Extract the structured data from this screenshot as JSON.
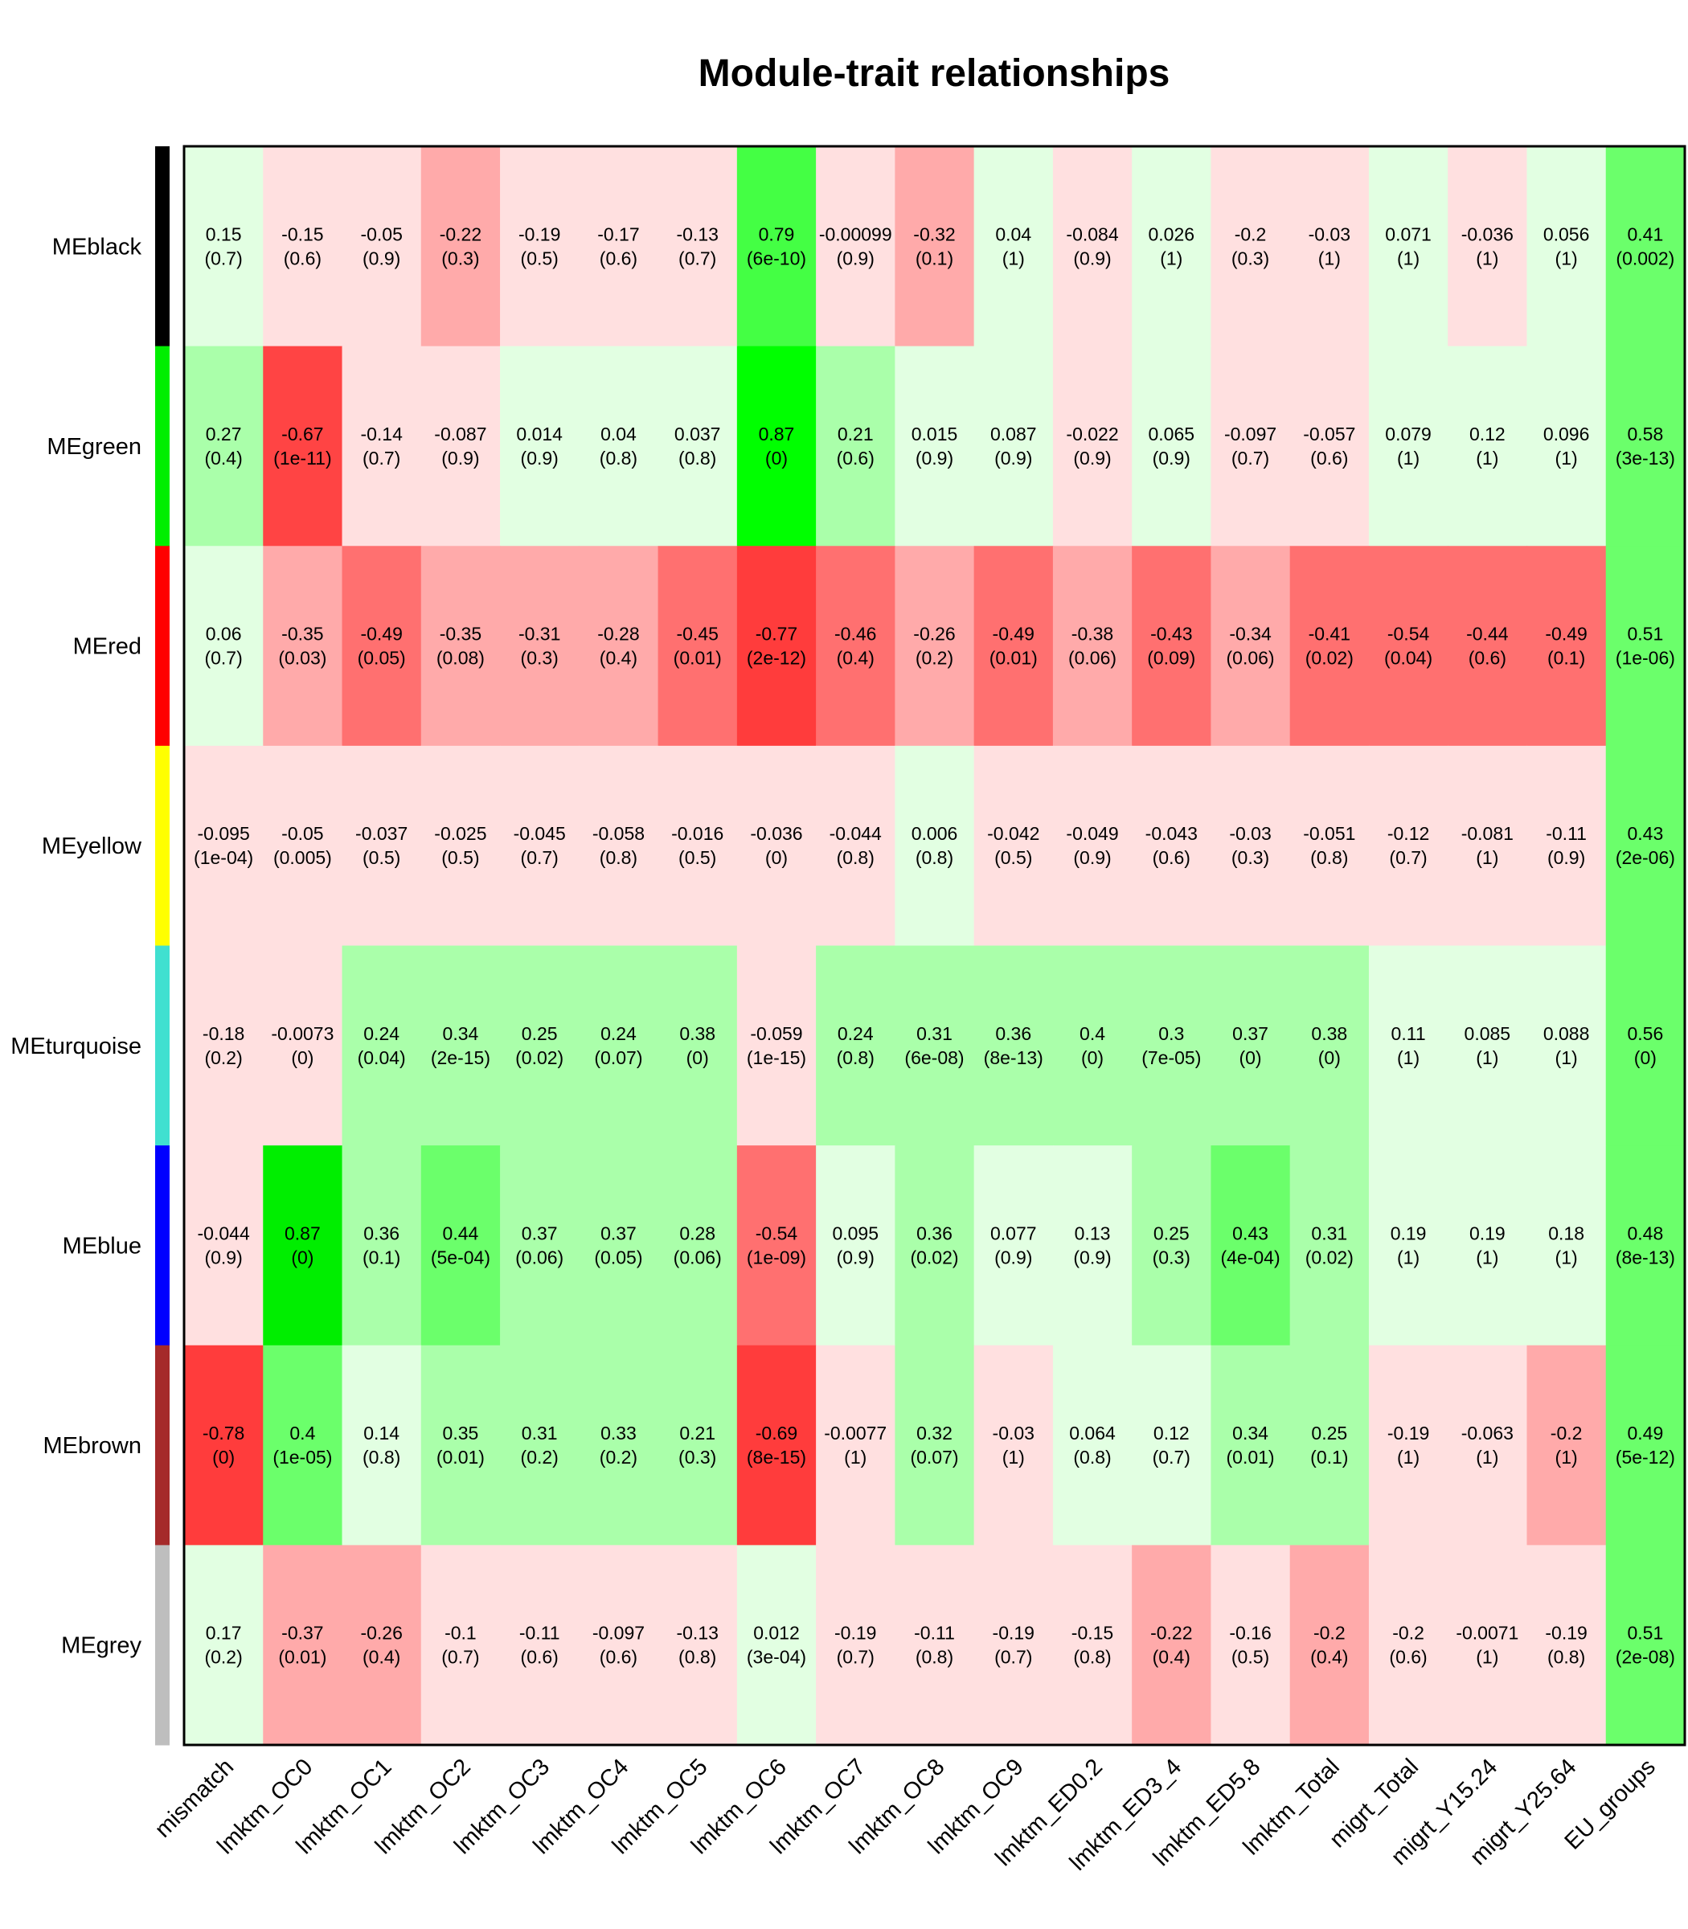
{
  "chart_data": {
    "type": "heatmap",
    "title": "Module-trait relationships",
    "columns": [
      "mismatch",
      "lmktm_OC0",
      "lmktm_OC1",
      "lmktm_OC2",
      "lmktm_OC3",
      "lmktm_OC4",
      "lmktm_OC5",
      "lmktm_OC6",
      "lmktm_OC7",
      "lmktm_OC8",
      "lmktm_OC9",
      "lmktm_ED0.2",
      "lmktm_ED3_4",
      "lmktm_ED5.8",
      "lmktm_Total",
      "migrt_Total",
      "migrt_Y15.24",
      "migrt_Y25.64",
      "EU_groups"
    ],
    "rows": [
      {
        "name": "MEblack",
        "color": "#000000",
        "values": [
          "0.15",
          "-0.15",
          "-0.05",
          "-0.22",
          "-0.19",
          "-0.17",
          "-0.13",
          "0.79",
          "-0.00099",
          "-0.32",
          "0.04",
          "-0.084",
          "0.026",
          "-0.2",
          "-0.03",
          "0.071",
          "-0.036",
          "0.056",
          "0.41"
        ],
        "pvalues": [
          "(0.7)",
          "(0.6)",
          "(0.9)",
          "(0.3)",
          "(0.5)",
          "(0.6)",
          "(0.7)",
          "(6e-10)",
          "(0.9)",
          "(0.1)",
          "(1)",
          "(0.9)",
          "(1)",
          "(0.3)",
          "(1)",
          "(1)",
          "(1)",
          "(1)",
          "(0.002)"
        ],
        "fills": [
          "#e2ffe2",
          "#ffe0e0",
          "#ffe0e0",
          "#ffaaaa",
          "#ffe0e0",
          "#ffe0e0",
          "#ffe0e0",
          "#44ff44",
          "#ffe0e0",
          "#ffaaaa",
          "#e2ffe2",
          "#ffe0e0",
          "#e2ffe2",
          "#ffe0e0",
          "#ffe0e0",
          "#e2ffe2",
          "#ffe0e0",
          "#e2ffe2",
          "#6bff6b"
        ]
      },
      {
        "name": "MEgreen",
        "color": "#00ee00",
        "values": [
          "0.27",
          "-0.67",
          "-0.14",
          "-0.087",
          "0.014",
          "0.04",
          "0.037",
          "0.87",
          "0.21",
          "0.015",
          "0.087",
          "-0.022",
          "0.065",
          "-0.097",
          "-0.057",
          "0.079",
          "0.12",
          "0.096",
          "0.58"
        ],
        "pvalues": [
          "(0.4)",
          "(1e-11)",
          "(0.7)",
          "(0.9)",
          "(0.9)",
          "(0.8)",
          "(0.8)",
          "(0)",
          "(0.6)",
          "(0.9)",
          "(0.9)",
          "(0.9)",
          "(0.9)",
          "(0.7)",
          "(0.6)",
          "(1)",
          "(1)",
          "(1)",
          "(3e-13)"
        ],
        "fills": [
          "#aaffaa",
          "#ff4444",
          "#ffe0e0",
          "#ffe0e0",
          "#e2ffe2",
          "#e2ffe2",
          "#e2ffe2",
          "#00ff00",
          "#aaffaa",
          "#e2ffe2",
          "#e2ffe2",
          "#ffe0e0",
          "#e2ffe2",
          "#ffe0e0",
          "#ffe0e0",
          "#e2ffe2",
          "#e2ffe2",
          "#e2ffe2",
          "#6bff6b"
        ]
      },
      {
        "name": "MEred",
        "color": "#ff0000",
        "values": [
          "0.06",
          "-0.35",
          "-0.49",
          "-0.35",
          "-0.31",
          "-0.28",
          "-0.45",
          "-0.77",
          "-0.46",
          "-0.26",
          "-0.49",
          "-0.38",
          "-0.43",
          "-0.34",
          "-0.41",
          "-0.54",
          "-0.44",
          "-0.49",
          "0.51"
        ],
        "pvalues": [
          "(0.7)",
          "(0.03)",
          "(0.05)",
          "(0.08)",
          "(0.3)",
          "(0.4)",
          "(0.01)",
          "(2e-12)",
          "(0.4)",
          "(0.2)",
          "(0.01)",
          "(0.06)",
          "(0.09)",
          "(0.06)",
          "(0.02)",
          "(0.04)",
          "(0.6)",
          "(0.1)",
          "(1e-06)"
        ],
        "fills": [
          "#e2ffe2",
          "#ffaaaa",
          "#ff7070",
          "#ffaaaa",
          "#ffaaaa",
          "#ffaaaa",
          "#ff7070",
          "#ff3c3c",
          "#ff7070",
          "#ffaaaa",
          "#ff7070",
          "#ffaaaa",
          "#ff7070",
          "#ffaaaa",
          "#ff7070",
          "#ff7070",
          "#ff7070",
          "#ff7070",
          "#6bff6b"
        ]
      },
      {
        "name": "MEyellow",
        "color": "#ffff00",
        "values": [
          "-0.095",
          "-0.05",
          "-0.037",
          "-0.025",
          "-0.045",
          "-0.058",
          "-0.016",
          "-0.036",
          "-0.044",
          "0.006",
          "-0.042",
          "-0.049",
          "-0.043",
          "-0.03",
          "-0.051",
          "-0.12",
          "-0.081",
          "-0.11",
          "0.43"
        ],
        "pvalues": [
          "(1e-04)",
          "(0.005)",
          "(0.5)",
          "(0.5)",
          "(0.7)",
          "(0.8)",
          "(0.5)",
          "(0)",
          "(0.8)",
          "(0.8)",
          "(0.5)",
          "(0.9)",
          "(0.6)",
          "(0.3)",
          "(0.8)",
          "(0.7)",
          "(1)",
          "(0.9)",
          "(2e-06)"
        ],
        "fills": [
          "#ffe0e0",
          "#ffe0e0",
          "#ffe0e0",
          "#ffe0e0",
          "#ffe0e0",
          "#ffe0e0",
          "#ffe0e0",
          "#ffe0e0",
          "#ffe0e0",
          "#e2ffe2",
          "#ffe0e0",
          "#ffe0e0",
          "#ffe0e0",
          "#ffe0e0",
          "#ffe0e0",
          "#ffe0e0",
          "#ffe0e0",
          "#ffe0e0",
          "#6bff6b"
        ]
      },
      {
        "name": "MEturquoise",
        "color": "#40e0d0",
        "values": [
          "-0.18",
          "-0.0073",
          "0.24",
          "0.34",
          "0.25",
          "0.24",
          "0.38",
          "-0.059",
          "0.24",
          "0.31",
          "0.36",
          "0.4",
          "0.3",
          "0.37",
          "0.38",
          "0.11",
          "0.085",
          "0.088",
          "0.56"
        ],
        "pvalues": [
          "(0.2)",
          "(0)",
          "(0.04)",
          "(2e-15)",
          "(0.02)",
          "(0.07)",
          "(0)",
          "(1e-15)",
          "(0.8)",
          "(6e-08)",
          "(8e-13)",
          "(0)",
          "(7e-05)",
          "(0)",
          "(0)",
          "(1)",
          "(1)",
          "(1)",
          "(0)"
        ],
        "fills": [
          "#ffe0e0",
          "#ffe0e0",
          "#aaffaa",
          "#aaffaa",
          "#aaffaa",
          "#aaffaa",
          "#aaffaa",
          "#ffe0e0",
          "#aaffaa",
          "#aaffaa",
          "#aaffaa",
          "#aaffaa",
          "#aaffaa",
          "#aaffaa",
          "#aaffaa",
          "#e2ffe2",
          "#e2ffe2",
          "#e2ffe2",
          "#6bff6b"
        ]
      },
      {
        "name": "MEblue",
        "color": "#0000ff",
        "values": [
          "-0.044",
          "0.87",
          "0.36",
          "0.44",
          "0.37",
          "0.37",
          "0.28",
          "-0.54",
          "0.095",
          "0.36",
          "0.077",
          "0.13",
          "0.25",
          "0.43",
          "0.31",
          "0.19",
          "0.19",
          "0.18",
          "0.48"
        ],
        "pvalues": [
          "(0.9)",
          "(0)",
          "(0.1)",
          "(5e-04)",
          "(0.06)",
          "(0.05)",
          "(0.06)",
          "(1e-09)",
          "(0.9)",
          "(0.02)",
          "(0.9)",
          "(0.9)",
          "(0.3)",
          "(4e-04)",
          "(0.02)",
          "(1)",
          "(1)",
          "(1)",
          "(8e-13)"
        ],
        "fills": [
          "#ffe0e0",
          "#00ee00",
          "#aaffaa",
          "#6bff6b",
          "#aaffaa",
          "#aaffaa",
          "#aaffaa",
          "#ff7070",
          "#e2ffe2",
          "#aaffaa",
          "#e2ffe2",
          "#e2ffe2",
          "#aaffaa",
          "#6bff6b",
          "#aaffaa",
          "#e2ffe2",
          "#e2ffe2",
          "#e2ffe2",
          "#6bff6b"
        ]
      },
      {
        "name": "MEbrown",
        "color": "#a52a2a",
        "values": [
          "-0.78",
          "0.4",
          "0.14",
          "0.35",
          "0.31",
          "0.33",
          "0.21",
          "-0.69",
          "-0.0077",
          "0.32",
          "-0.03",
          "0.064",
          "0.12",
          "0.34",
          "0.25",
          "-0.19",
          "-0.063",
          "-0.2",
          "0.49"
        ],
        "pvalues": [
          "(0)",
          "(1e-05)",
          "(0.8)",
          "(0.01)",
          "(0.2)",
          "(0.2)",
          "(0.3)",
          "(8e-15)",
          "(1)",
          "(0.07)",
          "(1)",
          "(0.8)",
          "(0.7)",
          "(0.01)",
          "(0.1)",
          "(1)",
          "(1)",
          "(1)",
          "(5e-12)"
        ],
        "fills": [
          "#ff3c3c",
          "#6bff6b",
          "#e2ffe2",
          "#aaffaa",
          "#aaffaa",
          "#aaffaa",
          "#aaffaa",
          "#ff3c3c",
          "#ffe0e0",
          "#aaffaa",
          "#ffe0e0",
          "#e2ffe2",
          "#e2ffe2",
          "#aaffaa",
          "#aaffaa",
          "#ffe0e0",
          "#ffe0e0",
          "#ffaaaa",
          "#6bff6b"
        ]
      },
      {
        "name": "MEgrey",
        "color": "#bebebe",
        "values": [
          "0.17",
          "-0.37",
          "-0.26",
          "-0.1",
          "-0.11",
          "-0.097",
          "-0.13",
          "0.012",
          "-0.19",
          "-0.11",
          "-0.19",
          "-0.15",
          "-0.22",
          "-0.16",
          "-0.2",
          "-0.2",
          "-0.0071",
          "-0.19",
          "0.51"
        ],
        "pvalues": [
          "(0.2)",
          "(0.01)",
          "(0.4)",
          "(0.7)",
          "(0.6)",
          "(0.6)",
          "(0.8)",
          "(3e-04)",
          "(0.7)",
          "(0.8)",
          "(0.7)",
          "(0.8)",
          "(0.4)",
          "(0.5)",
          "(0.4)",
          "(0.6)",
          "(1)",
          "(0.8)",
          "(2e-08)"
        ],
        "fills": [
          "#e2ffe2",
          "#ffaaaa",
          "#ffaaaa",
          "#ffe0e0",
          "#ffe0e0",
          "#ffe0e0",
          "#ffe0e0",
          "#e2ffe2",
          "#ffe0e0",
          "#ffe0e0",
          "#ffe0e0",
          "#ffe0e0",
          "#ffaaaa",
          "#ffe0e0",
          "#ffaaaa",
          "#ffe0e0",
          "#ffe0e0",
          "#ffe0e0",
          "#6bff6b"
        ]
      }
    ]
  }
}
